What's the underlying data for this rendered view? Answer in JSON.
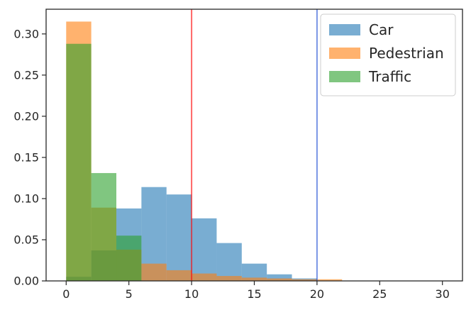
{
  "chart_data": {
    "type": "bar",
    "title": "",
    "xlabel": "",
    "ylabel": "",
    "xlim": [
      -1.6,
      31.6
    ],
    "ylim": [
      0,
      0.33
    ],
    "xticks": [
      0,
      5,
      10,
      15,
      20,
      25,
      30
    ],
    "yticks": [
      0.0,
      0.05,
      0.1,
      0.15,
      0.2,
      0.25,
      0.3
    ],
    "xtick_labels": [
      "0",
      "5",
      "10",
      "15",
      "20",
      "25",
      "30"
    ],
    "ytick_labels": [
      "0.00",
      "0.05",
      "0.10",
      "0.15",
      "0.20",
      "0.25",
      "0.30"
    ],
    "bin_edges": [
      0,
      2,
      4,
      6,
      8,
      10,
      12,
      14,
      16,
      18,
      20,
      22
    ],
    "legend_position": "top-right",
    "series": [
      {
        "name": "Car",
        "color": "#1f77b4",
        "opacity": 0.6,
        "values": [
          0.005,
          0.037,
          0.088,
          0.114,
          0.105,
          0.076,
          0.046,
          0.021,
          0.008,
          0.003,
          0.0
        ]
      },
      {
        "name": "Pedestrian",
        "color": "#ff7f0e",
        "opacity": 0.6,
        "values": [
          0.315,
          0.089,
          0.038,
          0.021,
          0.013,
          0.009,
          0.006,
          0.004,
          0.003,
          0.002,
          0.002
        ]
      },
      {
        "name": "Traffic",
        "color": "#2ca02c",
        "opacity": 0.6,
        "values": [
          0.288,
          0.131,
          0.055,
          0.0,
          0.0,
          0.0,
          0.0,
          0.0,
          0.0,
          0.0,
          0.0
        ]
      }
    ],
    "vlines": [
      {
        "x": 10,
        "color": "#ff0000",
        "opacity": 0.6
      },
      {
        "x": 20,
        "color": "#1f4fd4",
        "opacity": 0.6
      }
    ]
  }
}
